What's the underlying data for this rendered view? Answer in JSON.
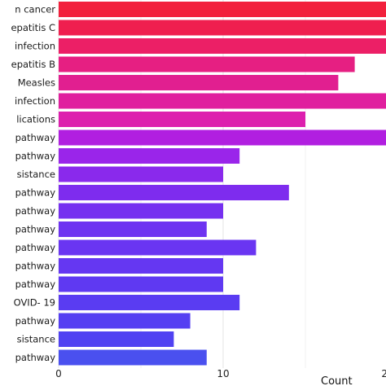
{
  "chart_data": {
    "type": "bar",
    "orientation": "horizontal",
    "categories": [
      "n cancer",
      "epatitis C",
      "infection",
      "epatitis B",
      "Measles",
      "infection",
      "lications",
      "pathway",
      "pathway",
      "sistance",
      "pathway",
      "pathway",
      "pathway",
      "pathway",
      "pathway",
      "pathway",
      "OVID- 19",
      "pathway",
      "sistance",
      "pathway"
    ],
    "values": [
      20,
      20,
      20,
      18,
      17,
      20,
      15,
      20,
      11,
      10,
      14,
      10,
      9,
      12,
      10,
      10,
      11,
      8,
      7,
      9
    ],
    "colors": [
      "#f2203c",
      "#ef1f4f",
      "#ec1f66",
      "#e61f82",
      "#e11f90",
      "#e01f9e",
      "#dd1fae",
      "#b11fe0",
      "#9a25ea",
      "#8a29ec",
      "#7e2cee",
      "#7630f0",
      "#6e33f1",
      "#6a35f2",
      "#6537f2",
      "#5f39f2",
      "#5a3cf2",
      "#553ff2",
      "#5042f2",
      "#4a50ef"
    ],
    "x_ticks": [
      "0",
      "10",
      "2"
    ],
    "xlabel": "Count",
    "xlim": [
      0,
      20
    ],
    "grid": true
  }
}
